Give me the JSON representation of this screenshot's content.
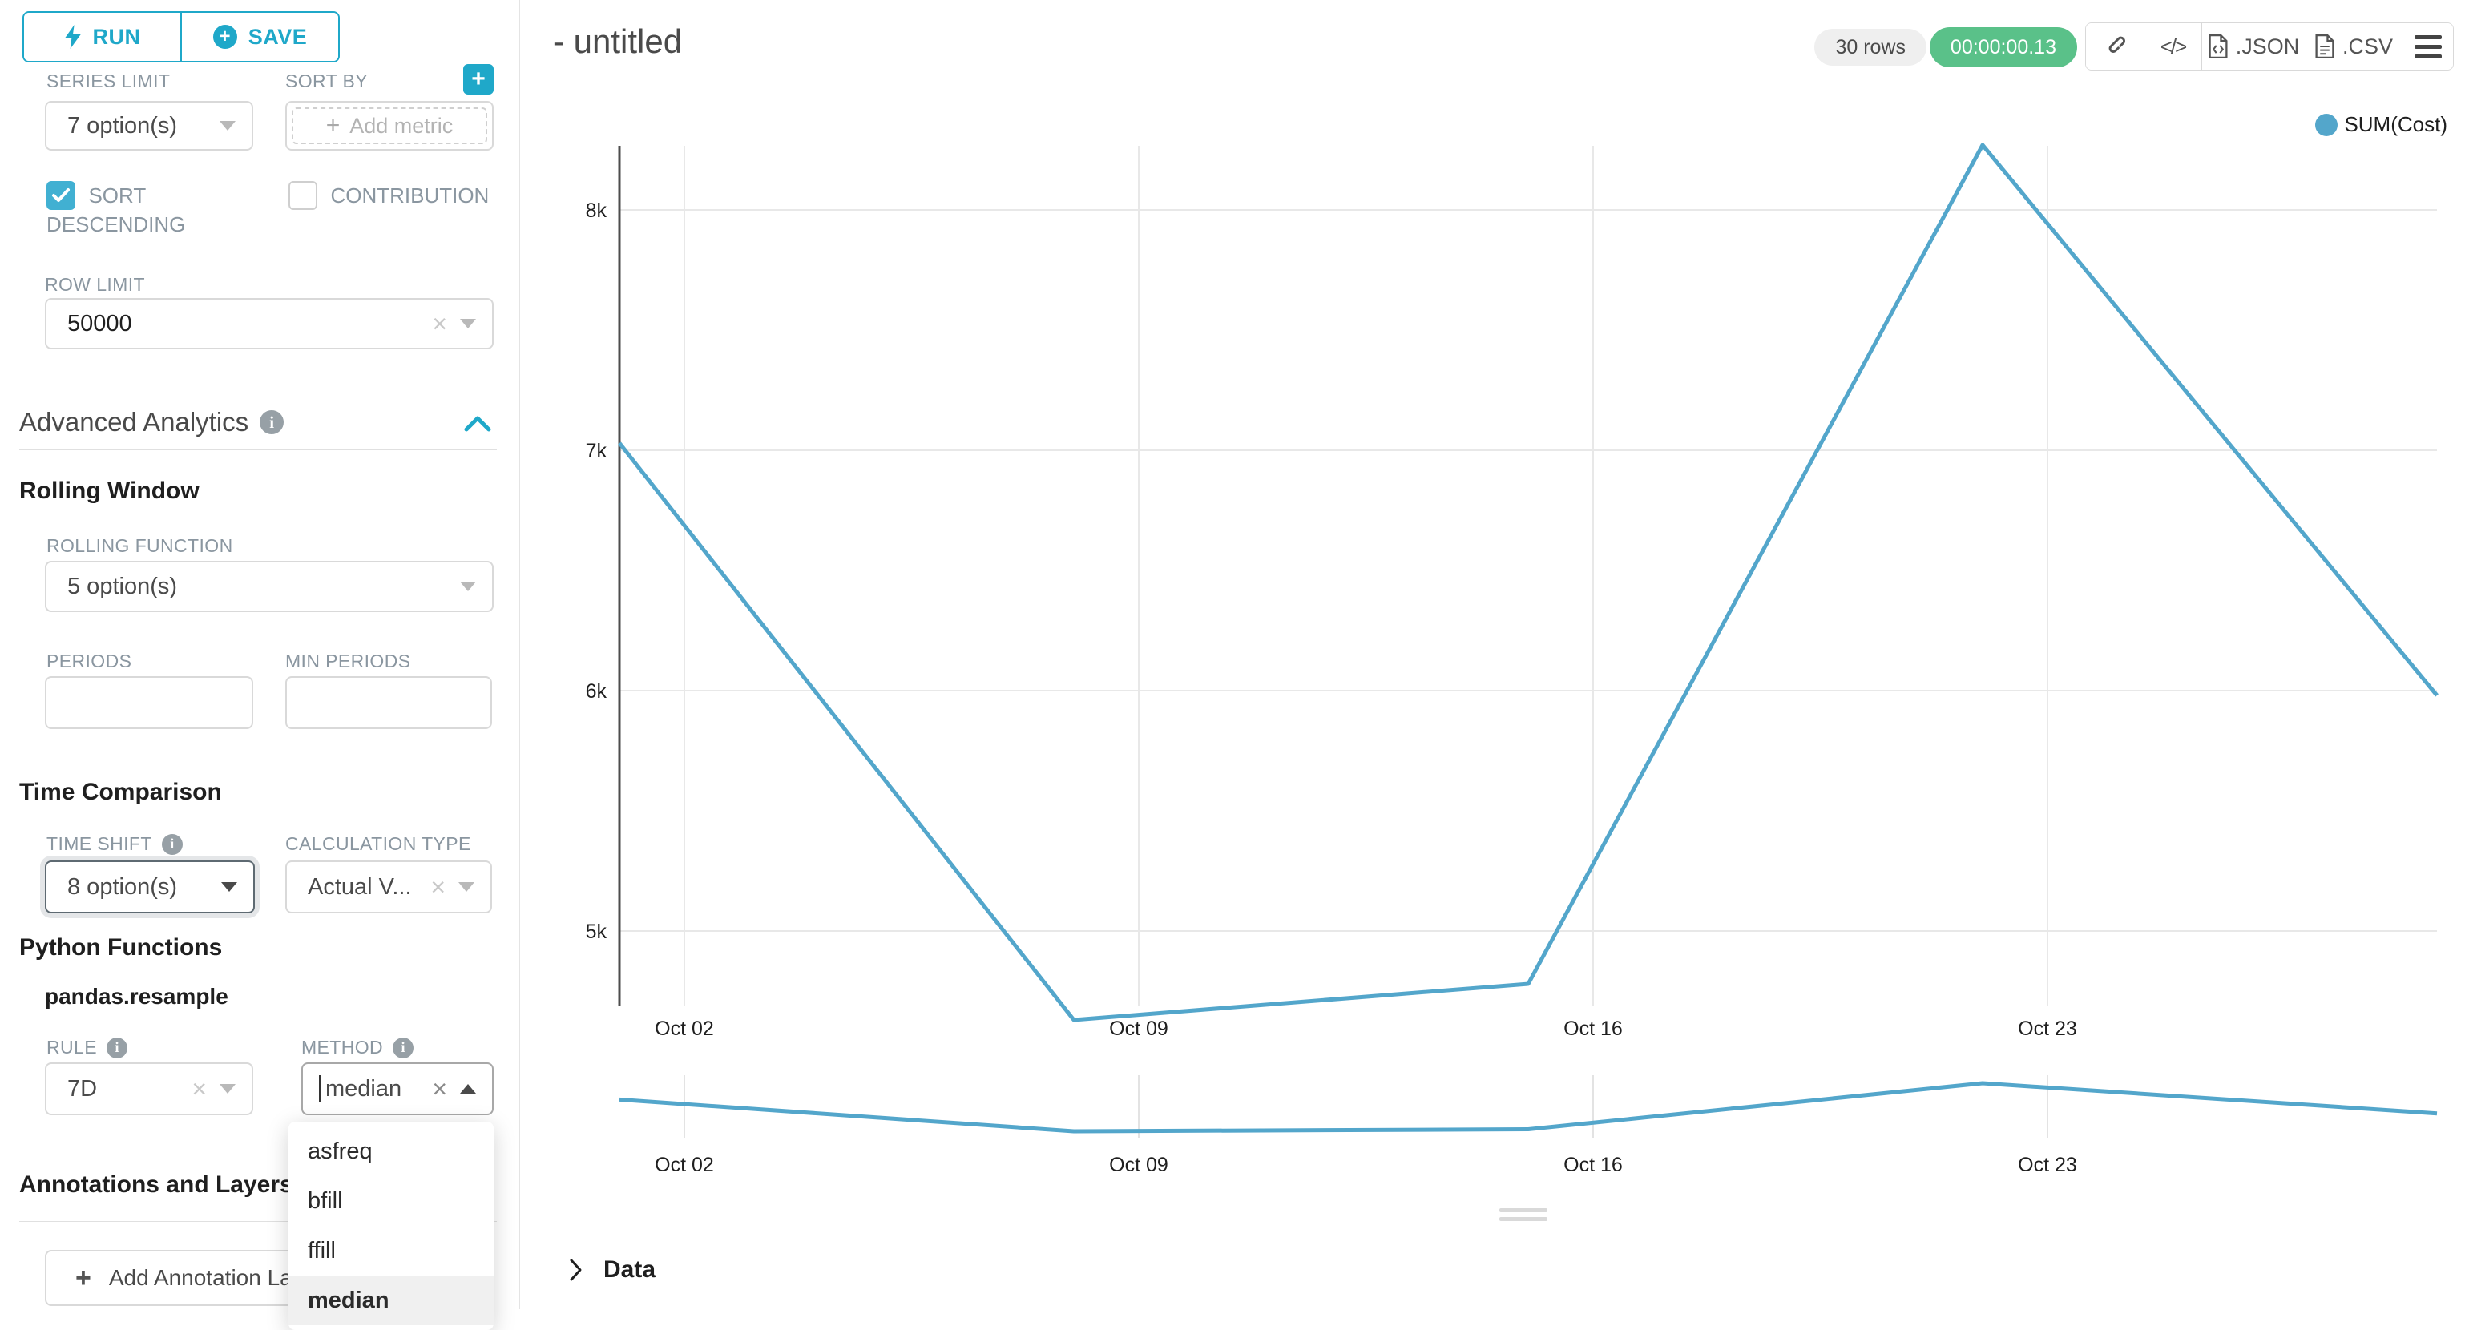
{
  "colors": {
    "accent": "#1fa8c9",
    "checkbox": "#41b0d2",
    "success": "#5ac189",
    "line": "#53a6cb",
    "grid": "#e8e8e8",
    "axis": "#4d4d4d"
  },
  "sidebar": {
    "run_label": "RUN",
    "save_label": "SAVE",
    "series_limit": {
      "label": "SERIES LIMIT",
      "value": "7 option(s)"
    },
    "sort_by": {
      "label": "SORT BY",
      "placeholder": "Add metric"
    },
    "sort_descending_label": "SORT DESCENDING",
    "contribution_label": "CONTRIBUTION",
    "row_limit": {
      "label": "ROW LIMIT",
      "value": "50000"
    },
    "advanced_analytics_title": "Advanced Analytics",
    "rolling_window_title": "Rolling Window",
    "rolling_function": {
      "label": "ROLLING FUNCTION",
      "value": "5 option(s)"
    },
    "periods_label": "PERIODS",
    "min_periods_label": "MIN PERIODS",
    "time_comparison_title": "Time Comparison",
    "time_shift": {
      "label": "TIME SHIFT",
      "value": "8 option(s)"
    },
    "calculation_type": {
      "label": "CALCULATION TYPE",
      "value": "Actual V..."
    },
    "python_functions_title": "Python Functions",
    "pandas_resample_label": "pandas.resample",
    "rule": {
      "label": "RULE",
      "value": "7D"
    },
    "method": {
      "label": "METHOD",
      "value": "median",
      "options": [
        "asfreq",
        "bfill",
        "ffill",
        "median"
      ],
      "selected": "median"
    },
    "annotations_title": "Annotations and Layers",
    "add_annotation_label": "Add Annotation Layer"
  },
  "header": {
    "title": "- untitled",
    "rows_badge": "30 rows",
    "timer": "00:00:00.13",
    "json_label": ".JSON",
    "csv_label": ".CSV"
  },
  "chart_data": {
    "type": "line",
    "series": [
      {
        "name": "SUM(Cost)",
        "x": [
          "Oct 01",
          "Oct 08",
          "Oct 15",
          "Oct 22",
          "Oct 29"
        ],
        "values": [
          7030,
          4630,
          4780,
          8270,
          5980
        ]
      }
    ],
    "x_tick_labels": [
      "Oct 02",
      "Oct 09",
      "Oct 16",
      "Oct 23"
    ],
    "y_ticks": [
      5000,
      6000,
      7000,
      8000
    ],
    "y_tick_labels": [
      "5k",
      "6k",
      "7k",
      "8k"
    ],
    "ylim": [
      4650,
      8430
    ],
    "grid": true,
    "legend_position": "top-right",
    "has_minimap": true,
    "minimap_x_tick_labels": [
      "Oct 02",
      "Oct 09",
      "Oct 16",
      "Oct 23"
    ]
  },
  "data_panel": {
    "label": "Data"
  }
}
